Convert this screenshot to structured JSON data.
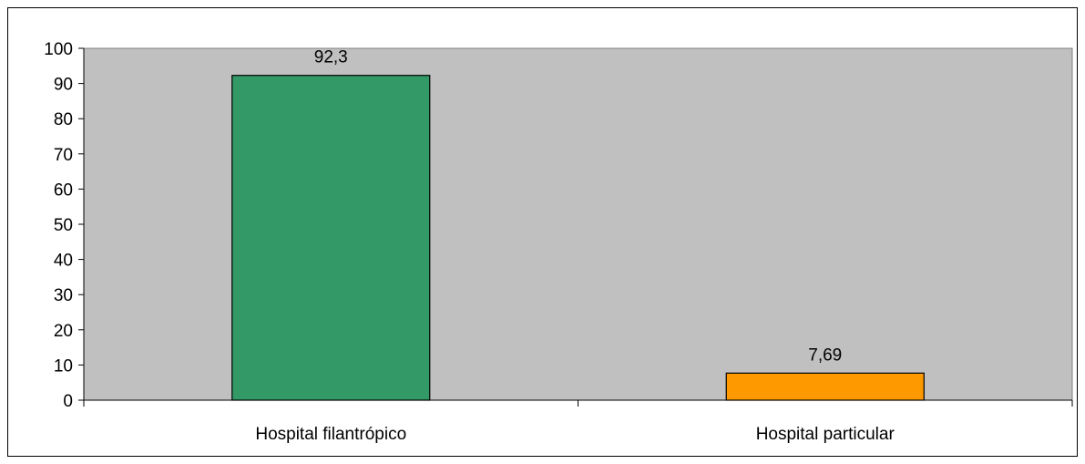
{
  "chart_data": {
    "type": "bar",
    "categories": [
      "Hospital filantrópico",
      "Hospital particular"
    ],
    "values": [
      92.3,
      7.69
    ],
    "value_labels": [
      "92,3",
      "7,69"
    ],
    "ylim": [
      0,
      100
    ],
    "yticks": [
      0,
      10,
      20,
      30,
      40,
      50,
      60,
      70,
      80,
      90,
      100
    ],
    "ytick_labels": [
      "0",
      "10",
      "20",
      "30",
      "40",
      "50",
      "60",
      "70",
      "80",
      "90",
      "100"
    ],
    "bar_colors": [
      "#339966",
      "#FF9900"
    ],
    "plot_background": "#C0C0C0",
    "grid": false,
    "legend": "none",
    "title": "",
    "xlabel": "",
    "ylabel": ""
  }
}
